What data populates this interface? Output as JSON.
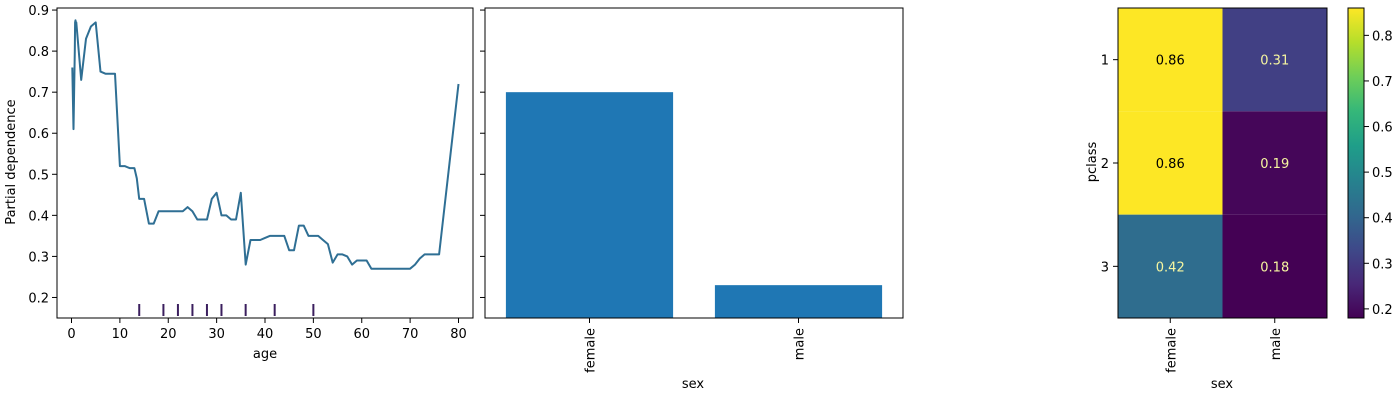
{
  "colors": {
    "line": "#2f6f94",
    "bar": "#1f77b4",
    "rug": "#3b1f5e",
    "cell_text_dark": "#000000",
    "cell_text_light": "#f6f6a0",
    "viridis": [
      "#440154",
      "#482878",
      "#3e4989",
      "#31688e",
      "#26828e",
      "#1f9e89",
      "#35b779",
      "#6ece58",
      "#b5de2b",
      "#fde725"
    ]
  },
  "chart_data": [
    {
      "type": "line",
      "xlabel": "age",
      "ylabel": "Partial dependence",
      "xlim": [
        -3,
        83
      ],
      "ylim": [
        0.15,
        0.905
      ],
      "xticks": [
        0,
        10,
        20,
        30,
        40,
        50,
        60,
        70,
        80
      ],
      "yticks": [
        0.2,
        0.3,
        0.4,
        0.5,
        0.6,
        0.7,
        0.8,
        0.9
      ],
      "grid": false,
      "series": [
        {
          "x": [
            0.17,
            0.42,
            0.67,
            0.75,
            0.83,
            0.92,
            1,
            2,
            3,
            4,
            5,
            6,
            7,
            8,
            9,
            10,
            11,
            12,
            13,
            13.5,
            14,
            15,
            16,
            17,
            18,
            19,
            20,
            21,
            22,
            23,
            24,
            25,
            26,
            27,
            28,
            29,
            30,
            31,
            32,
            33,
            34,
            35,
            36,
            36.5,
            37,
            38,
            39,
            40,
            41,
            42,
            43,
            44,
            45,
            46,
            47,
            48,
            49,
            50,
            51,
            52,
            53,
            54,
            55,
            56,
            57,
            58,
            59,
            60,
            61,
            62,
            63,
            64,
            65,
            66,
            67,
            68,
            69,
            70,
            71,
            72,
            73,
            74,
            76,
            80
          ],
          "y": [
            0.76,
            0.61,
            0.8,
            0.87,
            0.875,
            0.86,
            0.87,
            0.73,
            0.83,
            0.86,
            0.87,
            0.75,
            0.745,
            0.745,
            0.745,
            0.52,
            0.52,
            0.515,
            0.515,
            0.49,
            0.44,
            0.44,
            0.38,
            0.38,
            0.41,
            0.41,
            0.41,
            0.41,
            0.41,
            0.41,
            0.42,
            0.41,
            0.39,
            0.39,
            0.39,
            0.44,
            0.455,
            0.4,
            0.4,
            0.39,
            0.39,
            0.455,
            0.28,
            0.31,
            0.34,
            0.34,
            0.34,
            0.345,
            0.35,
            0.35,
            0.35,
            0.35,
            0.315,
            0.315,
            0.375,
            0.375,
            0.35,
            0.35,
            0.35,
            0.34,
            0.33,
            0.285,
            0.305,
            0.305,
            0.3,
            0.28,
            0.29,
            0.29,
            0.29,
            0.27,
            0.27,
            0.27,
            0.27,
            0.27,
            0.27,
            0.27,
            0.27,
            0.27,
            0.28,
            0.295,
            0.305,
            0.305,
            0.305,
            0.72
          ]
        }
      ],
      "rug_deciles": [
        14,
        19,
        22,
        25,
        28,
        31,
        36,
        42,
        50
      ]
    },
    {
      "type": "bar",
      "xlabel": "sex",
      "ylabel": "",
      "categories": [
        "female",
        "male"
      ],
      "values": [
        0.7,
        0.23
      ],
      "ylim": [
        0.15,
        0.905
      ],
      "shared_y_with_previous": true,
      "grid": false
    },
    {
      "type": "heatmap",
      "xlabel": "sex",
      "ylabel": "pclass",
      "x_categories": [
        "female",
        "male"
      ],
      "y_categories": [
        "1",
        "2",
        "3"
      ],
      "values": [
        [
          0.86,
          0.31
        ],
        [
          0.86,
          0.19
        ],
        [
          0.42,
          0.18
        ]
      ],
      "value_labels": [
        [
          "0.86",
          "0.31"
        ],
        [
          "0.86",
          "0.19"
        ],
        [
          "0.42",
          "0.18"
        ]
      ],
      "colormap": "viridis",
      "colorbar": {
        "range": [
          0.18,
          0.86
        ],
        "ticks": [
          0.2,
          0.3,
          0.4,
          0.5,
          0.6,
          0.7,
          0.8
        ]
      }
    }
  ]
}
